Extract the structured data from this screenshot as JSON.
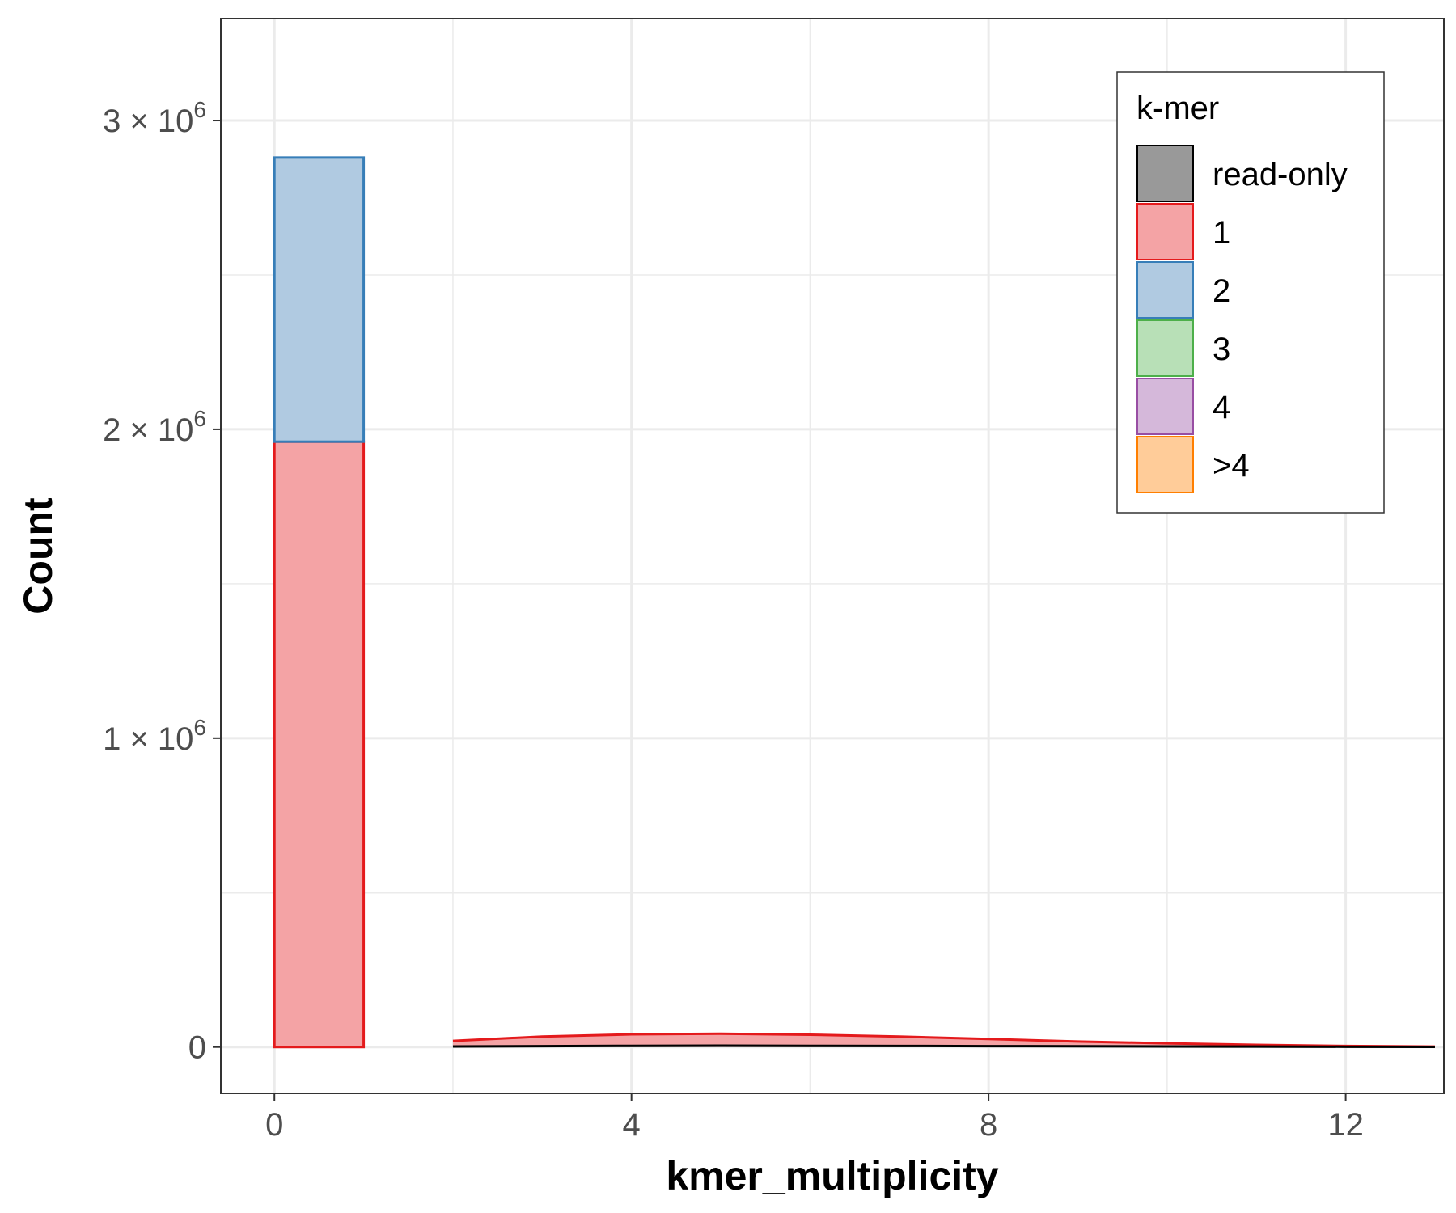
{
  "chart_data": {
    "type": "area",
    "xlabel": "kmer_multiplicity",
    "ylabel": "Count",
    "xlim": [
      -0.6,
      13.1
    ],
    "ylim": [
      -150000,
      3330000
    ],
    "x_ticks": [
      {
        "value": 0,
        "label": "0"
      },
      {
        "value": 4,
        "label": "4"
      },
      {
        "value": 8,
        "label": "8"
      },
      {
        "value": 12,
        "label": "12"
      }
    ],
    "y_ticks": [
      {
        "value": 0,
        "mantissa": "0",
        "exponent": ""
      },
      {
        "value": 1000000,
        "mantissa": "1 × 10",
        "exponent": "6"
      },
      {
        "value": 2000000,
        "mantissa": "2 × 10",
        "exponent": "6"
      },
      {
        "value": 3000000,
        "mantissa": "3 × 10",
        "exponent": "6"
      }
    ],
    "bars": [
      {
        "series": "1",
        "x0": 0,
        "x1": 1,
        "y0": 0,
        "y1": 1960000
      },
      {
        "series": "2",
        "x0": 0,
        "x1": 1,
        "y0": 1960000,
        "y1": 2880000
      }
    ],
    "areas": [
      {
        "series": "read-only",
        "x": [
          2,
          3,
          4,
          5,
          6,
          7,
          8,
          9,
          10,
          11,
          12,
          13
        ],
        "y": [
          2000,
          3000,
          4000,
          4500,
          4000,
          3500,
          3000,
          2500,
          2000,
          1500,
          1000,
          500
        ]
      },
      {
        "series": "1",
        "x": [
          2,
          3,
          4,
          5,
          6,
          7,
          8,
          9,
          10,
          11,
          12,
          13
        ],
        "y": [
          20000,
          34000,
          41000,
          43000,
          40000,
          34000,
          26000,
          18000,
          12000,
          7000,
          3500,
          1500
        ]
      }
    ],
    "legend": {
      "title": "k-mer",
      "position": "top-right",
      "items": [
        {
          "label": "read-only",
          "fill": "#999999",
          "stroke": "#000000"
        },
        {
          "label": "1",
          "fill": "#F4A3A5",
          "stroke": "#E41A1C"
        },
        {
          "label": "2",
          "fill": "#B0CAE1",
          "stroke": "#377EB8"
        },
        {
          "label": "3",
          "fill": "#B8E0B7",
          "stroke": "#4DAF4A"
        },
        {
          "label": "4",
          "fill": "#D5B8DA",
          "stroke": "#984EA3"
        },
        {
          "label": ">4",
          "fill": "#FFCC99",
          "stroke": "#FF7F00"
        }
      ]
    },
    "grid": true
  }
}
